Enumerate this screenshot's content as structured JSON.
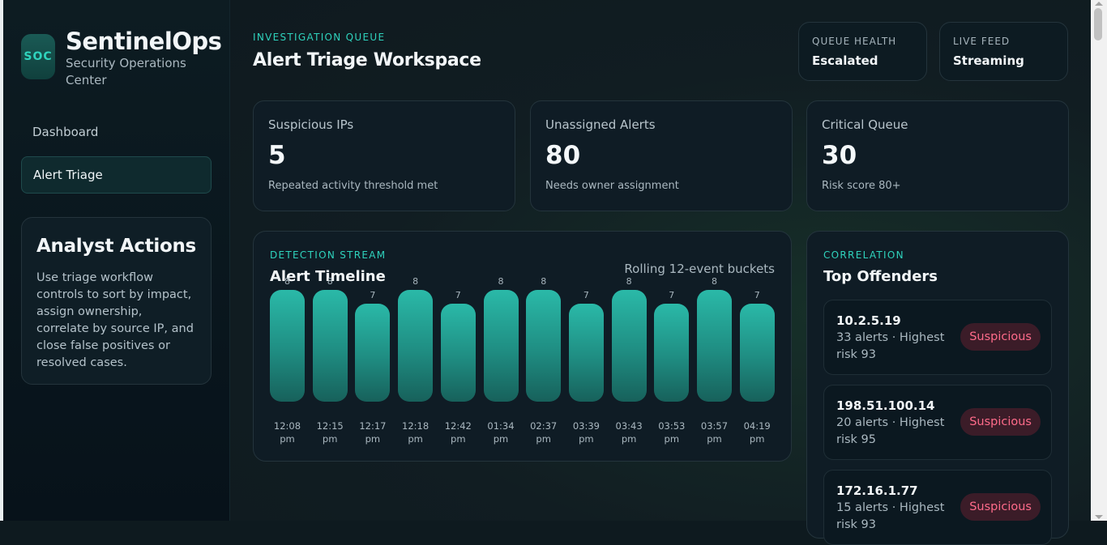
{
  "brand": {
    "logo": "SOC",
    "name": "SentinelOps",
    "subtitle": "Security Operations Center"
  },
  "nav": {
    "items": [
      {
        "label": "Dashboard",
        "active": false
      },
      {
        "label": "Alert Triage",
        "active": true
      }
    ]
  },
  "actions": {
    "title": "Analyst Actions",
    "text": "Use triage workflow controls to sort by impact, assign ownership, correlate by source IP, and close false positives or resolved cases."
  },
  "header": {
    "eyebrow": "INVESTIGATION QUEUE",
    "title": "Alert Triage Workspace",
    "pills": [
      {
        "label": "QUEUE HEALTH",
        "value": "Escalated"
      },
      {
        "label": "LIVE FEED",
        "value": "Streaming"
      }
    ]
  },
  "stats": [
    {
      "label": "Suspicious IPs",
      "value": "5",
      "note": "Repeated activity threshold met"
    },
    {
      "label": "Unassigned Alerts",
      "value": "80",
      "note": "Needs owner assignment"
    },
    {
      "label": "Critical Queue",
      "value": "30",
      "note": "Risk score 80+"
    }
  ],
  "timeline": {
    "eyebrow": "DETECTION STREAM",
    "title": "Alert Timeline",
    "subtitle": "Rolling 12-event buckets"
  },
  "chart_data": {
    "type": "bar",
    "title": "Alert Timeline",
    "categories": [
      "12:08 pm",
      "12:15 pm",
      "12:17 pm",
      "12:18 pm",
      "12:42 pm",
      "01:34 pm",
      "02:37 pm",
      "03:39 pm",
      "03:43 pm",
      "03:53 pm",
      "03:57 pm",
      "04:19 pm"
    ],
    "values": [
      8,
      8,
      7,
      8,
      7,
      8,
      8,
      7,
      8,
      7,
      8,
      7
    ],
    "ylim": [
      0,
      8
    ],
    "grid": false,
    "colors": {
      "bar_top": "#2ab9a8",
      "bar_bottom": "#17615b"
    }
  },
  "offenders": {
    "eyebrow": "CORRELATION",
    "title": "Top Offenders",
    "items": [
      {
        "ip": "10.2.5.19",
        "meta": "33 alerts · Highest risk 93",
        "badge": "Suspicious"
      },
      {
        "ip": "198.51.100.14",
        "meta": "20 alerts · Highest risk 95",
        "badge": "Suspicious"
      },
      {
        "ip": "172.16.1.77",
        "meta": "15 alerts · Highest risk 93",
        "badge": "Suspicious"
      }
    ]
  }
}
